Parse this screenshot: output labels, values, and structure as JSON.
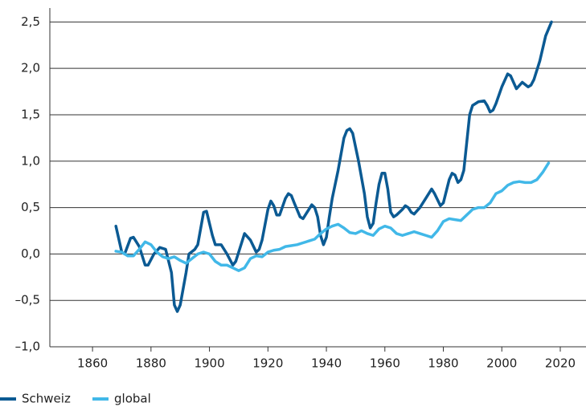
{
  "chart_data": {
    "type": "line",
    "xlim": [
      1845.4,
      2028.8
    ],
    "ylim": [
      -1.0,
      2.65
    ],
    "xticks": [
      1860,
      1880,
      1900,
      1920,
      1940,
      1960,
      1980,
      2000,
      2020
    ],
    "yticks": [
      {
        "value": -1.0,
        "label": "–1,0"
      },
      {
        "value": -0.5,
        "label": "–0,5"
      },
      {
        "value": 0.0,
        "label": "0,0"
      },
      {
        "value": 0.5,
        "label": "0,5"
      },
      {
        "value": 1.0,
        "label": "1,0"
      },
      {
        "value": 1.5,
        "label": "1,5"
      },
      {
        "value": 2.0,
        "label": "2,0"
      },
      {
        "value": 2.5,
        "label": "2,5"
      }
    ],
    "grid": true,
    "legend": "bottom-left",
    "series": [
      {
        "name": "Schweiz",
        "color": "#0b5a93",
        "x": [
          1868,
          1870,
          1871,
          1873,
          1874,
          1876,
          1878,
          1879,
          1881,
          1883,
          1885,
          1887,
          1888,
          1889,
          1890,
          1892,
          1893,
          1895,
          1896,
          1898,
          1899,
          1901,
          1902,
          1904,
          1906,
          1908,
          1909,
          1911,
          1912,
          1914,
          1916,
          1917,
          1918,
          1920,
          1921,
          1922,
          1923,
          1924,
          1926,
          1927,
          1928,
          1929,
          1931,
          1932,
          1934,
          1935,
          1936,
          1937,
          1938,
          1939,
          1940,
          1941,
          1942,
          1944,
          1946,
          1947,
          1948,
          1949,
          1951,
          1953,
          1954,
          1955,
          1956,
          1957,
          1958,
          1959,
          1960,
          1961,
          1962,
          1963,
          1964,
          1966,
          1967,
          1968,
          1969,
          1970,
          1972,
          1974,
          1976,
          1977,
          1979,
          1980,
          1982,
          1983,
          1984,
          1985,
          1986,
          1987,
          1988,
          1989,
          1990,
          1992,
          1994,
          1995,
          1996,
          1997,
          1998,
          2000,
          2002,
          2003,
          2004,
          2005,
          2007,
          2009,
          2010,
          2011,
          2013,
          2015,
          2017
        ],
        "values": [
          0.3,
          0.02,
          0.0,
          0.17,
          0.18,
          0.08,
          -0.12,
          -0.12,
          0.0,
          0.07,
          0.05,
          -0.2,
          -0.55,
          -0.62,
          -0.55,
          -0.2,
          0.0,
          0.05,
          0.1,
          0.45,
          0.46,
          0.2,
          0.1,
          0.1,
          0.0,
          -0.12,
          -0.08,
          0.12,
          0.22,
          0.15,
          0.02,
          0.05,
          0.15,
          0.48,
          0.57,
          0.52,
          0.42,
          0.42,
          0.6,
          0.65,
          0.63,
          0.55,
          0.4,
          0.38,
          0.48,
          0.53,
          0.5,
          0.4,
          0.2,
          0.1,
          0.18,
          0.4,
          0.6,
          0.9,
          1.25,
          1.33,
          1.35,
          1.3,
          1.0,
          0.65,
          0.4,
          0.28,
          0.33,
          0.55,
          0.75,
          0.87,
          0.87,
          0.7,
          0.45,
          0.4,
          0.42,
          0.48,
          0.52,
          0.5,
          0.45,
          0.43,
          0.5,
          0.6,
          0.7,
          0.65,
          0.52,
          0.55,
          0.8,
          0.87,
          0.85,
          0.77,
          0.8,
          0.9,
          1.2,
          1.5,
          1.6,
          1.64,
          1.65,
          1.6,
          1.53,
          1.55,
          1.62,
          1.8,
          1.94,
          1.92,
          1.85,
          1.78,
          1.85,
          1.8,
          1.82,
          1.88,
          2.08,
          2.35,
          2.5
        ]
      },
      {
        "name": "global",
        "color": "#41b8e8",
        "x": [
          1868,
          1870,
          1872,
          1874,
          1876,
          1878,
          1880,
          1882,
          1884,
          1886,
          1888,
          1890,
          1892,
          1894,
          1896,
          1898,
          1900,
          1902,
          1904,
          1906,
          1908,
          1910,
          1912,
          1914,
          1916,
          1918,
          1920,
          1922,
          1924,
          1926,
          1928,
          1930,
          1932,
          1934,
          1936,
          1938,
          1940,
          1942,
          1944,
          1946,
          1948,
          1950,
          1952,
          1954,
          1956,
          1958,
          1960,
          1962,
          1964,
          1966,
          1968,
          1970,
          1972,
          1974,
          1976,
          1978,
          1980,
          1982,
          1984,
          1986,
          1988,
          1990,
          1992,
          1994,
          1996,
          1998,
          2000,
          2002,
          2004,
          2006,
          2008,
          2010,
          2012,
          2014,
          2016
        ],
        "values": [
          0.03,
          0.02,
          -0.02,
          -0.02,
          0.05,
          0.13,
          0.1,
          0.02,
          -0.03,
          -0.05,
          -0.03,
          -0.07,
          -0.1,
          -0.05,
          0.0,
          0.02,
          0.0,
          -0.08,
          -0.12,
          -0.12,
          -0.15,
          -0.18,
          -0.15,
          -0.05,
          -0.02,
          -0.03,
          0.02,
          0.04,
          0.05,
          0.08,
          0.09,
          0.1,
          0.12,
          0.14,
          0.16,
          0.22,
          0.27,
          0.3,
          0.32,
          0.28,
          0.23,
          0.22,
          0.25,
          0.22,
          0.2,
          0.27,
          0.3,
          0.28,
          0.22,
          0.2,
          0.22,
          0.24,
          0.22,
          0.2,
          0.18,
          0.25,
          0.35,
          0.38,
          0.37,
          0.36,
          0.42,
          0.48,
          0.5,
          0.5,
          0.55,
          0.65,
          0.68,
          0.74,
          0.77,
          0.78,
          0.77,
          0.77,
          0.8,
          0.88,
          0.98
        ]
      }
    ]
  }
}
